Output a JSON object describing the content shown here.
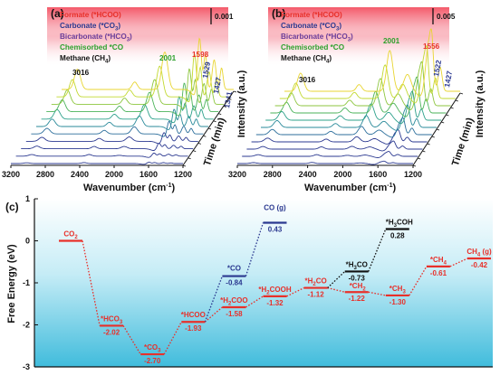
{
  "chart_data": [
    {
      "type": "line",
      "panel_label": "(a)",
      "xlabel": "Wavenumber (cm",
      "xlabel_sup": "-1",
      "xlabel_close": ")",
      "ylabel": "Intensity (a.u.)",
      "depth_label": "Time (min)",
      "x_ticks": [
        "3200",
        "2800",
        "2400",
        "2000",
        "1600",
        "1200"
      ],
      "xlim": [
        3200,
        1200
      ],
      "scale_bar": "0.001",
      "legend": [
        {
          "label": "Formate (*HCOO)",
          "color": "#e8302a"
        },
        {
          "label": "Carbonate (*CO",
          "sub": "3",
          "close": ")",
          "color": "#2b3990"
        },
        {
          "label": "Bicarbonate (*HCO",
          "sub": "3",
          "close": ")",
          "color": "#6a3d9a"
        },
        {
          "label": "Chemisorbed *CO",
          "color": "#2ca02c"
        },
        {
          "label": "Methane (CH",
          "sub": "4",
          "close": ")",
          "color": "#111111"
        }
      ],
      "peaks": [
        {
          "label": "3016",
          "color": "#111111"
        },
        {
          "label": "2001",
          "color": "#2ca02c"
        },
        {
          "label": "1598",
          "color": "#e8302a"
        },
        {
          "label": "1529",
          "color": "#2b3990"
        },
        {
          "label": "1427",
          "color": "#2b3990"
        },
        {
          "label": "1341",
          "color": "#2b3990"
        }
      ],
      "series_count": 11
    },
    {
      "type": "line",
      "panel_label": "(b)",
      "xlabel": "Wavenumber (cm",
      "xlabel_sup": "-1",
      "xlabel_close": ")",
      "ylabel": "Intensity (a.u.)",
      "depth_label": "Time (min)",
      "x_ticks": [
        "3200",
        "2800",
        "2400",
        "2000",
        "1600",
        "1200"
      ],
      "xlim": [
        3200,
        1200
      ],
      "scale_bar": "0.005",
      "legend": [
        {
          "label": "Formate (*HCOO)",
          "color": "#e8302a"
        },
        {
          "label": "Carbonate (*CO",
          "sub": "3",
          "close": ")",
          "color": "#2b3990"
        },
        {
          "label": "Bicarbonate (*HCO",
          "sub": "3",
          "close": ")",
          "color": "#6a3d9a"
        },
        {
          "label": "Chemisorbed *CO",
          "color": "#2ca02c"
        },
        {
          "label": "Methane (CH",
          "sub": "4",
          "close": ")",
          "color": "#111111"
        }
      ],
      "peaks": [
        {
          "label": "3016",
          "color": "#111111"
        },
        {
          "label": "2001",
          "color": "#2ca02c"
        },
        {
          "label": "1556",
          "color": "#e8302a"
        },
        {
          "label": "1522",
          "color": "#2b3990"
        },
        {
          "label": "1427",
          "color": "#2b3990"
        }
      ],
      "series_count": 11
    },
    {
      "type": "line",
      "panel_label": "(c)",
      "ylabel": "Free Energy (eV)",
      "ylim": [
        -3,
        1
      ],
      "y_ticks": [
        "1",
        "0",
        "-1",
        "-2",
        "-3"
      ],
      "colors": {
        "main": "#e8302a",
        "co_branch": "#2b3990",
        "h3coh_branch": "#111111"
      },
      "states": [
        {
          "id": "co2",
          "step": 0,
          "label": "CO",
          "sub": "2",
          "value": 0.0,
          "value_text": "",
          "color": "#e8302a"
        },
        {
          "id": "hco3",
          "step": 1,
          "label": "*HCO",
          "sub": "3",
          "value": -2.02,
          "value_text": "-2.02",
          "color": "#e8302a"
        },
        {
          "id": "co3",
          "step": 2,
          "label": "*CO",
          "sub": "3",
          "value": -2.7,
          "value_text": "-2.70",
          "color": "#e8302a"
        },
        {
          "id": "hcoo",
          "step": 3,
          "label": "*HCOO",
          "sub": "",
          "value": -1.93,
          "value_text": "-1.93",
          "color": "#e8302a"
        },
        {
          "id": "h2coo",
          "step": 4,
          "label": "*H",
          "sub": "2",
          "tail": "COO",
          "value": -1.58,
          "value_text": "-1.58",
          "color": "#e8302a"
        },
        {
          "id": "h2cooh",
          "step": 5,
          "label": "*H",
          "sub": "2",
          "tail": "COOH",
          "value": -1.32,
          "value_text": "-1.32",
          "color": "#e8302a"
        },
        {
          "id": "h2co",
          "step": 6,
          "label": "*H",
          "sub": "2",
          "tail": "CO",
          "value": -1.12,
          "value_text": "-1.12",
          "color": "#e8302a"
        },
        {
          "id": "ch2",
          "step": 7,
          "label": "*CH",
          "sub": "2",
          "value": -1.22,
          "value_text": "-1.22",
          "color": "#e8302a"
        },
        {
          "id": "ch3",
          "step": 8,
          "label": "*CH",
          "sub": "3",
          "value": -1.3,
          "value_text": "-1.30",
          "color": "#e8302a"
        },
        {
          "id": "ch4",
          "step": 9,
          "label": "*CH",
          "sub": "4",
          "value": -0.61,
          "value_text": "-0.61",
          "color": "#e8302a"
        },
        {
          "id": "ch4g",
          "step": 10,
          "label": "CH",
          "sub": "4",
          "tail": " (g)",
          "value": -0.42,
          "value_text": "-0.42",
          "color": "#e8302a"
        },
        {
          "id": "co_ads",
          "step": 4,
          "label": "*CO",
          "sub": "",
          "value": -0.84,
          "value_text": "-0.84",
          "color": "#2b3990"
        },
        {
          "id": "co_g",
          "step": 5,
          "label": "CO (g)",
          "sub": "",
          "value": 0.43,
          "value_text": "0.43",
          "color": "#2b3990"
        },
        {
          "id": "h3co",
          "step": 7,
          "label": "*H",
          "sub": "3",
          "tail": "CO",
          "value": -0.73,
          "value_text": "-0.73",
          "color": "#111111"
        },
        {
          "id": "h3coh",
          "step": 8,
          "label": "*H",
          "sub": "3",
          "tail": "COH",
          "value": 0.28,
          "value_text": "0.28",
          "color": "#111111"
        }
      ],
      "connections": [
        {
          "from": "co2",
          "to": "hco3",
          "color": "#e8302a"
        },
        {
          "from": "hco3",
          "to": "co3",
          "color": "#e8302a"
        },
        {
          "from": "co3",
          "to": "hcoo",
          "color": "#e8302a"
        },
        {
          "from": "hcoo",
          "to": "h2coo",
          "color": "#e8302a"
        },
        {
          "from": "h2coo",
          "to": "h2cooh",
          "color": "#e8302a"
        },
        {
          "from": "h2cooh",
          "to": "h2co",
          "color": "#e8302a"
        },
        {
          "from": "h2co",
          "to": "ch2",
          "color": "#e8302a"
        },
        {
          "from": "ch2",
          "to": "ch3",
          "color": "#e8302a"
        },
        {
          "from": "ch3",
          "to": "ch4",
          "color": "#e8302a"
        },
        {
          "from": "ch4",
          "to": "ch4g",
          "color": "#e8302a"
        },
        {
          "from": "hcoo",
          "to": "co_ads",
          "color": "#2b3990"
        },
        {
          "from": "co_ads",
          "to": "co_g",
          "color": "#2b3990"
        },
        {
          "from": "h2co",
          "to": "h3co",
          "color": "#111111"
        },
        {
          "from": "h3co",
          "to": "h3coh",
          "color": "#111111"
        }
      ]
    }
  ]
}
